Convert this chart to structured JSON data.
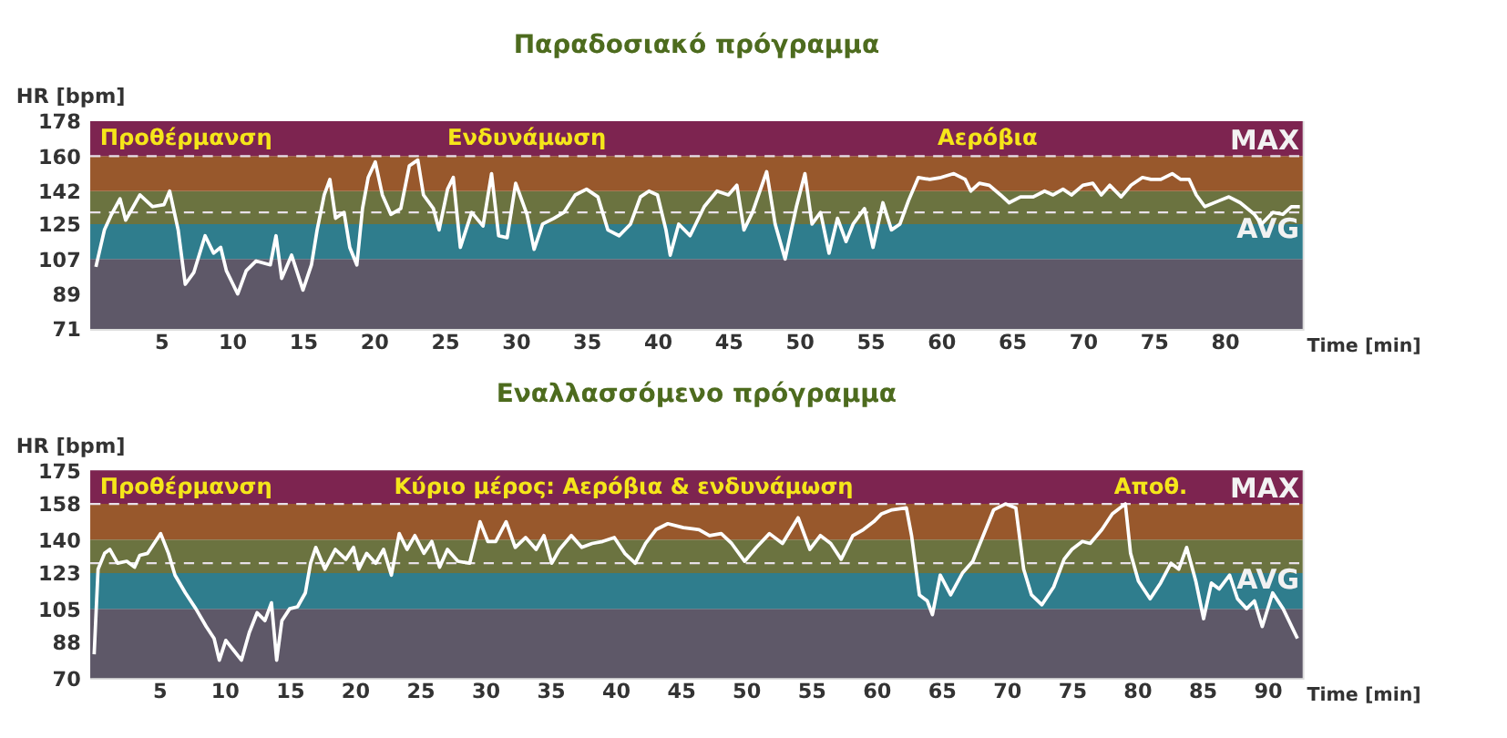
{
  "chart_data": [
    {
      "type": "line",
      "title": "Παραδοσιακό πρόγραμμα",
      "ylabel": "HR [bpm]",
      "xlabel": "Time [min]",
      "xlim": [
        0,
        85.5
      ],
      "ylim": [
        71,
        178
      ],
      "xticks": [
        5,
        10,
        15,
        20,
        25,
        30,
        35,
        40,
        45,
        50,
        55,
        60,
        65,
        70,
        75,
        80
      ],
      "yticks": [
        71,
        89,
        107,
        125,
        142,
        160,
        178
      ],
      "bands": [
        {
          "axis": "y",
          "from": 71,
          "to": 107,
          "color": "#5e5868"
        },
        {
          "axis": "y",
          "from": 107,
          "to": 125,
          "color": "#2f7d8d"
        },
        {
          "axis": "y",
          "from": 125,
          "to": 142,
          "color": "#6b7340"
        },
        {
          "axis": "y",
          "from": 142,
          "to": 160,
          "color": "#98582c"
        },
        {
          "axis": "y",
          "from": 160,
          "to": 178,
          "color": "#7d2450"
        }
      ],
      "ref_lines": [
        {
          "axis": "y",
          "value": 160,
          "label": "MAX",
          "color": "#e8e0e8",
          "line_style": "dashed"
        },
        {
          "axis": "y",
          "value": 131,
          "label": "AVG",
          "color": "#e8e0e8",
          "line_style": "dashed"
        }
      ],
      "annotations": [
        "Προθέρμανση",
        "Ενδυνάμωση",
        "Αερόβια"
      ],
      "x": [
        0.4,
        1.0,
        1.5,
        2.1,
        2.5,
        3.5,
        4.4,
        5.2,
        5.6,
        6.2,
        6.7,
        7.3,
        8.1,
        8.7,
        9.2,
        9.6,
        10.4,
        11.0,
        11.7,
        12.7,
        13.1,
        13.5,
        14.2,
        15.0,
        15.6,
        16.0,
        16.5,
        16.9,
        17.3,
        17.9,
        18.3,
        18.8,
        19.2,
        19.6,
        20.1,
        20.6,
        21.2,
        21.9,
        22.5,
        23.1,
        23.5,
        24.2,
        24.6,
        25.2,
        25.6,
        26.1,
        26.9,
        27.7,
        28.3,
        28.8,
        29.4,
        30.0,
        30.8,
        31.3,
        31.9,
        32.7,
        33.4,
        34.2,
        35.0,
        35.8,
        36.5,
        37.3,
        38.1,
        38.8,
        39.4,
        40.0,
        40.6,
        40.9,
        41.5,
        42.3,
        43.3,
        44.2,
        45.0,
        45.6,
        46.1,
        46.7,
        47.7,
        48.3,
        49.0,
        49.8,
        50.4,
        50.9,
        51.5,
        52.1,
        52.7,
        53.3,
        53.8,
        54.6,
        55.2,
        55.9,
        56.5,
        57.1,
        57.7,
        58.4,
        59.2,
        60.0,
        60.9,
        61.7,
        62.1,
        62.7,
        63.4,
        64.2,
        64.8,
        65.6,
        66.5,
        67.3,
        67.9,
        68.6,
        69.2,
        70.0,
        70.7,
        71.3,
        71.9,
        72.7,
        73.4,
        74.2,
        74.8,
        75.5,
        76.3,
        76.9,
        77.5,
        78.0,
        78.6,
        79.6,
        80.3,
        81.1,
        82.1,
        82.6,
        83.4,
        84.1,
        84.7,
        85.3
      ],
      "series": [
        {
          "color": "#ffffff",
          "values": [
            103,
            122,
            130,
            138,
            127,
            140,
            134,
            135,
            142,
            122,
            94,
            100,
            119,
            110,
            113,
            101,
            89,
            101,
            106,
            104,
            119,
            97,
            109,
            91,
            104,
            122,
            140,
            148,
            128,
            131,
            113,
            104,
            133,
            149,
            157,
            140,
            130,
            133,
            155,
            158,
            140,
            133,
            122,
            143,
            149,
            113,
            131,
            124,
            151,
            119,
            118,
            146,
            130,
            112,
            125,
            128,
            131,
            140,
            143,
            139,
            122,
            119,
            125,
            139,
            142,
            140,
            122,
            109,
            125,
            119,
            134,
            142,
            140,
            145,
            122,
            131,
            152,
            125,
            107,
            134,
            151,
            125,
            131,
            110,
            128,
            116,
            125,
            133,
            113,
            136,
            122,
            125,
            137,
            149,
            148,
            149,
            151,
            148,
            142,
            146,
            145,
            140,
            136,
            139,
            139,
            142,
            140,
            143,
            140,
            145,
            146,
            140,
            145,
            139,
            145,
            149,
            148,
            148,
            151,
            148,
            148,
            140,
            134,
            137,
            139,
            136,
            130,
            125,
            131,
            130,
            134,
            134
          ]
        }
      ]
    },
    {
      "type": "line",
      "title": "Εναλλασσόμενο πρόγραμμα",
      "ylabel": "HR [bpm]",
      "xlabel": "Time [min]",
      "xlim": [
        -0.3,
        92.7
      ],
      "ylim": [
        70,
        175
      ],
      "xticks": [
        5,
        10,
        15,
        20,
        25,
        30,
        35,
        40,
        45,
        50,
        55,
        60,
        65,
        70,
        75,
        80,
        85,
        90
      ],
      "yticks": [
        70,
        88,
        105,
        123,
        140,
        158,
        175
      ],
      "bands": [
        {
          "axis": "y",
          "from": 70,
          "to": 105,
          "color": "#5e5868"
        },
        {
          "axis": "y",
          "from": 105,
          "to": 123,
          "color": "#2f7d8d"
        },
        {
          "axis": "y",
          "from": 123,
          "to": 140,
          "color": "#6b7340"
        },
        {
          "axis": "y",
          "from": 140,
          "to": 158,
          "color": "#98582c"
        },
        {
          "axis": "y",
          "from": 158,
          "to": 175,
          "color": "#7d2450"
        }
      ],
      "ref_lines": [
        {
          "axis": "y",
          "value": 158,
          "label": "MAX",
          "color": "#e8e0e8",
          "line_style": "dashed"
        },
        {
          "axis": "y",
          "value": 128,
          "label": "AVG",
          "color": "#e8e0e8",
          "line_style": "dashed"
        }
      ],
      "annotations": [
        "Προθέρμανση",
        "Κύριο μέρος: Αερόβια & ενδυνάμωση",
        "Αποθ."
      ],
      "x": [
        0.0,
        0.3,
        0.8,
        1.2,
        1.8,
        2.5,
        3.1,
        3.5,
        4.1,
        4.7,
        5.1,
        5.7,
        6.2,
        7.0,
        7.8,
        8.6,
        9.2,
        9.6,
        10.1,
        10.7,
        11.3,
        11.9,
        12.5,
        13.1,
        13.6,
        14.0,
        14.4,
        15.0,
        15.6,
        16.2,
        16.6,
        17.0,
        17.7,
        18.5,
        19.3,
        19.9,
        20.3,
        20.9,
        21.6,
        22.2,
        22.8,
        23.4,
        24.0,
        24.6,
        25.3,
        25.9,
        26.5,
        27.1,
        27.9,
        28.8,
        29.6,
        30.2,
        30.8,
        31.6,
        32.3,
        33.1,
        33.9,
        34.5,
        35.1,
        35.7,
        36.6,
        37.4,
        38.2,
        39.0,
        39.9,
        40.7,
        41.5,
        42.3,
        43.1,
        44.0,
        45.2,
        46.4,
        47.2,
        48.1,
        48.9,
        49.9,
        50.8,
        51.8,
        52.8,
        54.0,
        54.9,
        55.7,
        56.5,
        57.3,
        58.2,
        59.0,
        59.8,
        60.4,
        61.2,
        62.3,
        62.7,
        63.3,
        63.9,
        64.3,
        64.9,
        65.7,
        66.6,
        67.4,
        68.2,
        69.0,
        69.9,
        70.7,
        71.3,
        71.9,
        72.7,
        73.6,
        74.4,
        75.0,
        75.8,
        76.4,
        77.3,
        78.1,
        79.1,
        79.5,
        80.1,
        81.0,
        81.8,
        82.6,
        83.2,
        83.8,
        84.5,
        85.1,
        85.7,
        86.3,
        87.1,
        87.7,
        88.4,
        89.0,
        89.6,
        90.4,
        91.2,
        92.3
      ],
      "series": [
        {
          "color": "#ffffff",
          "values": [
            82,
            125,
            133,
            135,
            128,
            129,
            126,
            132,
            133,
            139,
            143,
            133,
            122,
            113,
            105,
            96,
            90,
            79,
            89,
            84,
            79,
            93,
            103,
            99,
            108,
            79,
            99,
            105,
            106,
            113,
            128,
            136,
            125,
            135,
            130,
            136,
            125,
            133,
            128,
            135,
            122,
            143,
            135,
            142,
            133,
            139,
            126,
            135,
            129,
            128,
            149,
            139,
            139,
            149,
            136,
            141,
            135,
            142,
            128,
            135,
            142,
            136,
            138,
            139,
            141,
            133,
            128,
            138,
            145,
            148,
            146,
            145,
            142,
            143,
            138,
            129,
            136,
            143,
            138,
            151,
            135,
            142,
            138,
            130,
            142,
            145,
            149,
            153,
            155,
            156,
            142,
            112,
            109,
            102,
            122,
            112,
            123,
            129,
            142,
            155,
            158,
            156,
            125,
            112,
            107,
            116,
            130,
            135,
            139,
            138,
            145,
            153,
            158,
            133,
            119,
            110,
            118,
            128,
            125,
            136,
            119,
            100,
            118,
            115,
            122,
            110,
            105,
            109,
            96,
            113,
            105,
            90
          ]
        }
      ]
    }
  ]
}
